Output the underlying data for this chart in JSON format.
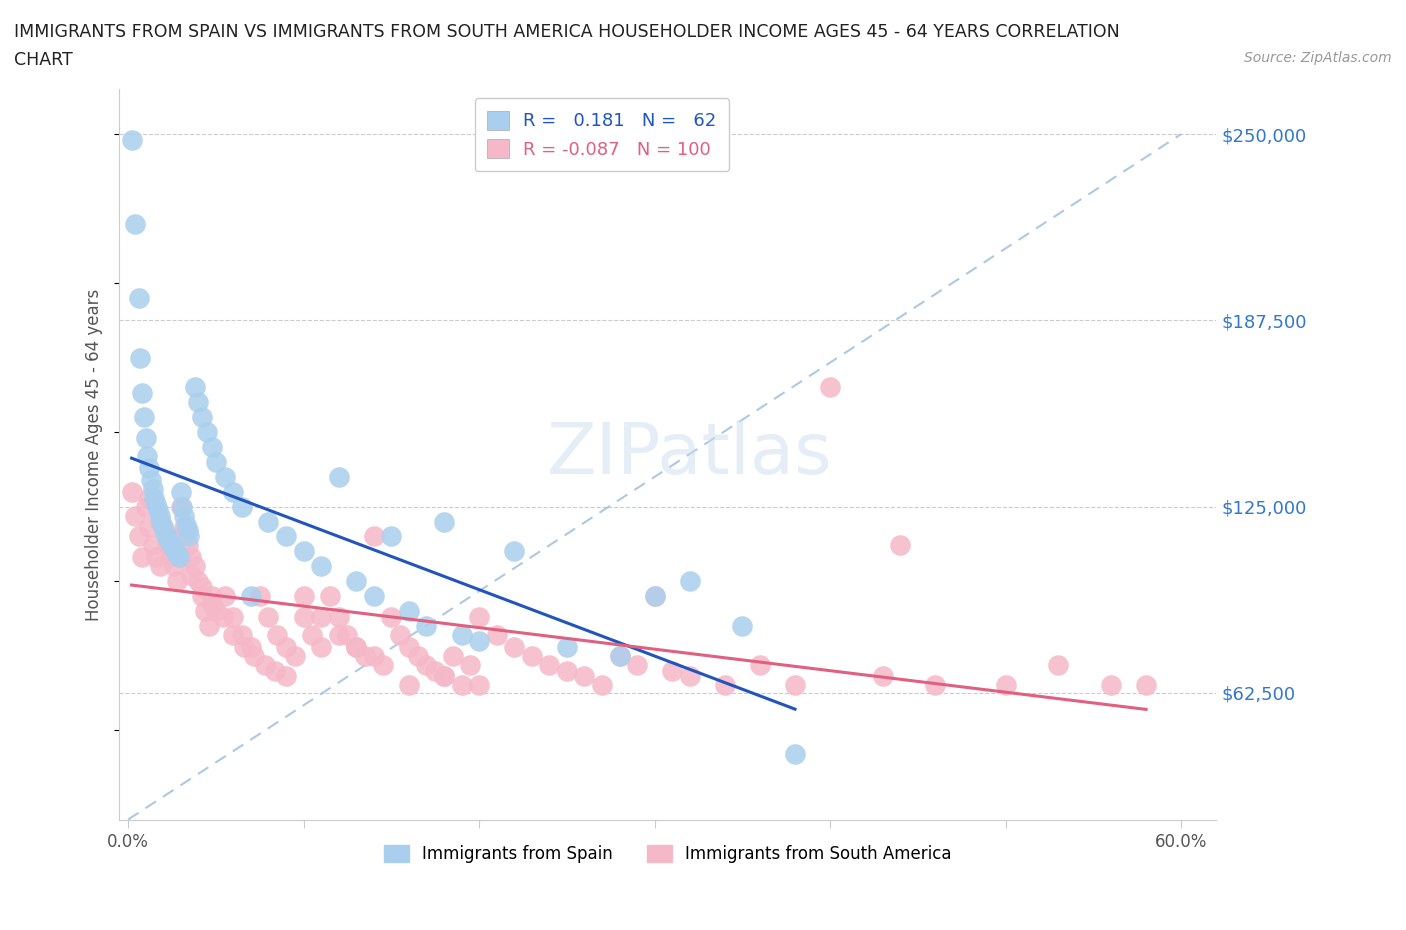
{
  "title_line1": "IMMIGRANTS FROM SPAIN VS IMMIGRANTS FROM SOUTH AMERICA HOUSEHOLDER INCOME AGES 45 - 64 YEARS CORRELATION",
  "title_line2": "CHART",
  "source_text": "Source: ZipAtlas.com",
  "ylabel": "Householder Income Ages 45 - 64 years",
  "xlim": [
    -0.005,
    0.62
  ],
  "ylim": [
    20000,
    265000
  ],
  "yticks": [
    62500,
    125000,
    187500,
    250000
  ],
  "ytick_labels": [
    "$62,500",
    "$125,000",
    "$187,500",
    "$250,000"
  ],
  "xticks": [
    0.0,
    0.1,
    0.2,
    0.3,
    0.4,
    0.5,
    0.6
  ],
  "xtick_labels": [
    "0.0%",
    "",
    "",
    "",
    "",
    "",
    "60.0%"
  ],
  "spain_R": 0.181,
  "spain_N": 62,
  "sa_R": -0.087,
  "sa_N": 100,
  "spain_color": "#aacfee",
  "sa_color": "#f5b8c8",
  "spain_line_color": "#2255bb",
  "sa_line_color": "#e06080",
  "diag_line_color": "#99bbdd",
  "legend_spain_label": "Immigrants from Spain",
  "legend_sa_label": "Immigrants from South America",
  "watermark": "ZIPatlas",
  "spain_x": [
    0.002,
    0.004,
    0.006,
    0.007,
    0.008,
    0.009,
    0.01,
    0.011,
    0.012,
    0.013,
    0.014,
    0.015,
    0.016,
    0.017,
    0.018,
    0.019,
    0.02,
    0.021,
    0.022,
    0.023,
    0.024,
    0.025,
    0.026,
    0.027,
    0.028,
    0.029,
    0.03,
    0.031,
    0.032,
    0.033,
    0.034,
    0.035,
    0.038,
    0.04,
    0.042,
    0.045,
    0.048,
    0.05,
    0.055,
    0.06,
    0.065,
    0.07,
    0.08,
    0.09,
    0.1,
    0.11,
    0.12,
    0.13,
    0.14,
    0.15,
    0.16,
    0.17,
    0.18,
    0.19,
    0.2,
    0.22,
    0.25,
    0.28,
    0.3,
    0.32,
    0.35,
    0.38
  ],
  "spain_y": [
    248000,
    220000,
    195000,
    175000,
    163000,
    155000,
    148000,
    142000,
    138000,
    134000,
    131000,
    128000,
    126000,
    124000,
    122000,
    120000,
    118000,
    116000,
    115000,
    114000,
    113000,
    112000,
    111000,
    110000,
    109000,
    108000,
    130000,
    125000,
    122000,
    119000,
    117000,
    115000,
    165000,
    160000,
    155000,
    150000,
    145000,
    140000,
    135000,
    130000,
    125000,
    95000,
    120000,
    115000,
    110000,
    105000,
    135000,
    100000,
    95000,
    115000,
    90000,
    85000,
    120000,
    82000,
    80000,
    110000,
    78000,
    75000,
    95000,
    100000,
    85000,
    42000
  ],
  "sa_x": [
    0.002,
    0.004,
    0.006,
    0.008,
    0.01,
    0.012,
    0.014,
    0.016,
    0.018,
    0.02,
    0.022,
    0.024,
    0.026,
    0.028,
    0.03,
    0.032,
    0.034,
    0.036,
    0.038,
    0.04,
    0.042,
    0.044,
    0.046,
    0.048,
    0.05,
    0.055,
    0.06,
    0.065,
    0.07,
    0.075,
    0.08,
    0.085,
    0.09,
    0.095,
    0.1,
    0.105,
    0.11,
    0.115,
    0.12,
    0.125,
    0.13,
    0.135,
    0.14,
    0.145,
    0.15,
    0.155,
    0.16,
    0.165,
    0.17,
    0.175,
    0.18,
    0.185,
    0.19,
    0.195,
    0.2,
    0.21,
    0.22,
    0.23,
    0.24,
    0.25,
    0.26,
    0.27,
    0.28,
    0.29,
    0.3,
    0.31,
    0.32,
    0.34,
    0.36,
    0.38,
    0.4,
    0.43,
    0.46,
    0.5,
    0.53,
    0.56,
    0.012,
    0.018,
    0.024,
    0.03,
    0.036,
    0.042,
    0.048,
    0.054,
    0.06,
    0.066,
    0.072,
    0.078,
    0.084,
    0.09,
    0.1,
    0.11,
    0.12,
    0.13,
    0.14,
    0.16,
    0.18,
    0.2,
    0.44,
    0.58
  ],
  "sa_y": [
    130000,
    122000,
    115000,
    108000,
    125000,
    118000,
    112000,
    108000,
    105000,
    118000,
    112000,
    108000,
    105000,
    100000,
    125000,
    118000,
    112000,
    108000,
    105000,
    100000,
    95000,
    90000,
    85000,
    95000,
    90000,
    95000,
    88000,
    82000,
    78000,
    95000,
    88000,
    82000,
    78000,
    75000,
    88000,
    82000,
    78000,
    95000,
    88000,
    82000,
    78000,
    75000,
    115000,
    72000,
    88000,
    82000,
    78000,
    75000,
    72000,
    70000,
    68000,
    75000,
    65000,
    72000,
    88000,
    82000,
    78000,
    75000,
    72000,
    70000,
    68000,
    65000,
    75000,
    72000,
    95000,
    70000,
    68000,
    65000,
    72000,
    65000,
    165000,
    68000,
    65000,
    65000,
    72000,
    65000,
    128000,
    120000,
    115000,
    108000,
    102000,
    98000,
    92000,
    88000,
    82000,
    78000,
    75000,
    72000,
    70000,
    68000,
    95000,
    88000,
    82000,
    78000,
    75000,
    65000,
    68000,
    65000,
    112000,
    65000
  ]
}
